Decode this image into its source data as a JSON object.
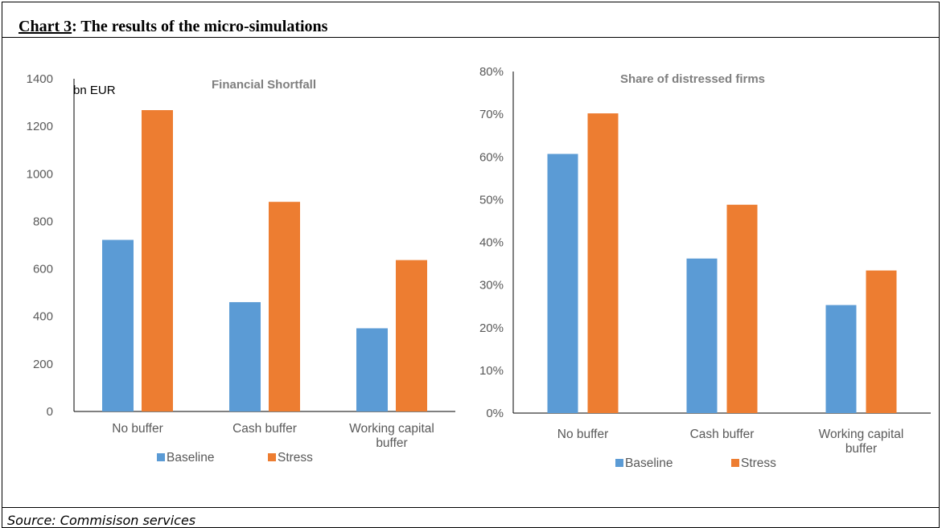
{
  "header": {
    "title_prefix": "Chart 3",
    "title_rest": ": The results of the micro-simulations"
  },
  "footer": {
    "source": "Source: Commisison services"
  },
  "colors": {
    "baseline": "#5B9BD5",
    "stress": "#ED7D31"
  },
  "chart_data": [
    {
      "type": "bar",
      "title": "Financial Shortfall",
      "unit_label": "bn EUR",
      "categories": [
        [
          "No buffer"
        ],
        [
          "Cash buffer"
        ],
        [
          "Working capital",
          "buffer"
        ]
      ],
      "series": [
        {
          "name": "Baseline",
          "values": [
            722,
            460,
            350
          ]
        },
        {
          "name": "Stress",
          "values": [
            1268,
            882,
            637
          ]
        }
      ],
      "ylim": [
        0,
        1400
      ],
      "yticks": [
        0,
        200,
        400,
        600,
        800,
        1000,
        1200,
        1400
      ],
      "ytick_labels": [
        "0",
        "200",
        "400",
        "600",
        "800",
        "1000",
        "1200",
        "1400"
      ],
      "grid": false,
      "legend_position": "bottom"
    },
    {
      "type": "bar",
      "title": "Share of distressed firms",
      "categories": [
        [
          "No buffer"
        ],
        [
          "Cash buffer"
        ],
        [
          "Working capital",
          "buffer"
        ]
      ],
      "series": [
        {
          "name": "Baseline",
          "values": [
            0.607,
            0.362,
            0.253
          ]
        },
        {
          "name": "Stress",
          "values": [
            0.702,
            0.488,
            0.334
          ]
        }
      ],
      "ylim": [
        0,
        0.8
      ],
      "yticks": [
        0,
        0.1,
        0.2,
        0.3,
        0.4,
        0.5,
        0.6,
        0.7,
        0.8
      ],
      "ytick_labels": [
        "0%",
        "10%",
        "20%",
        "30%",
        "40%",
        "50%",
        "60%",
        "70%",
        "80%"
      ],
      "grid": false,
      "legend_position": "bottom"
    }
  ]
}
